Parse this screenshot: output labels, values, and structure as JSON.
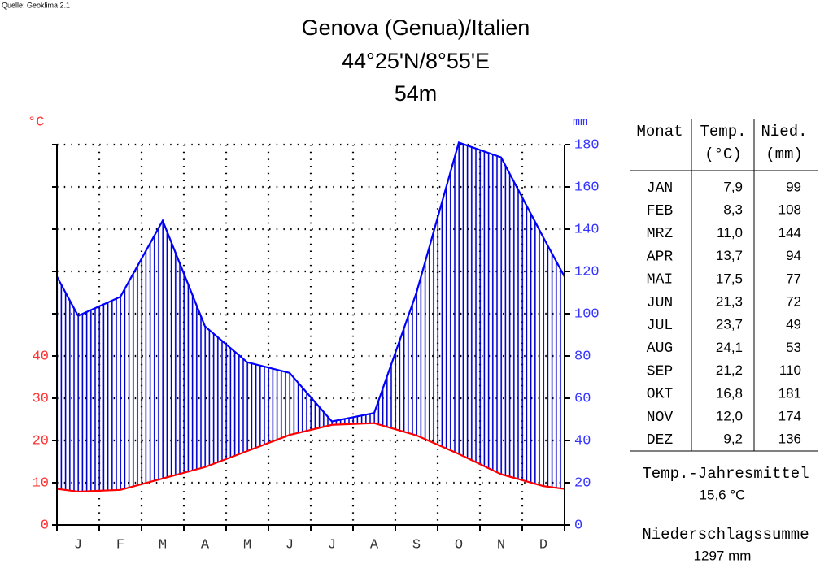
{
  "source": "Quelle: Geoklima 2.1",
  "chart_data": {
    "type": "climate",
    "title": [
      "Genova (Genua)/Italien",
      "44°25'N/8°55'E",
      "54m"
    ],
    "ylabel": "°C",
    "y2label": "mm",
    "categories": [
      "J",
      "F",
      "M",
      "A",
      "M",
      "J",
      "J",
      "A",
      "S",
      "O",
      "N",
      "D"
    ],
    "series": [
      {
        "color": "#ff0000",
        "values": [
          7.9,
          8.3,
          11.0,
          13.7,
          17.5,
          21.3,
          23.7,
          24.1,
          21.2,
          16.8,
          12.0,
          9.2
        ],
        "value_labels": [
          "7,9",
          "8,3",
          "11,0",
          "13,7",
          "17,5",
          "21,3",
          "23,7",
          "24,1",
          "21,2",
          "16,8",
          "12,0",
          "9,2"
        ]
      },
      {
        "color": "#0000ff",
        "axis": "y2",
        "values": [
          99,
          108,
          144,
          94,
          77,
          72,
          49,
          53,
          110,
          181,
          174,
          136
        ]
      }
    ],
    "ylim": [
      0,
      90
    ],
    "yticks": [
      0,
      10,
      20,
      30,
      40
    ],
    "y2lim": [
      0,
      180
    ],
    "y2ticks": [
      0,
      20,
      40,
      60,
      80,
      100,
      120,
      140,
      160,
      180
    ],
    "grid": true
  },
  "table": {
    "headers": [
      [
        "Monat"
      ],
      [
        "Temp.",
        "(°C)"
      ],
      [
        "Nied.",
        "(mm)"
      ]
    ],
    "months": [
      "JAN",
      "FEB",
      "MRZ",
      "APR",
      "MAI",
      "JUN",
      "JUL",
      "AUG",
      "SEP",
      "OKT",
      "NOV",
      "DEZ"
    ]
  },
  "annual_mean": {
    "label": "Temp.-Jahresmittel",
    "value": 15.6,
    "value_label": "15,6 °C"
  },
  "annual_sum": {
    "label": "Niederschlagssumme",
    "value": 1297,
    "value_label": "1297 mm"
  }
}
